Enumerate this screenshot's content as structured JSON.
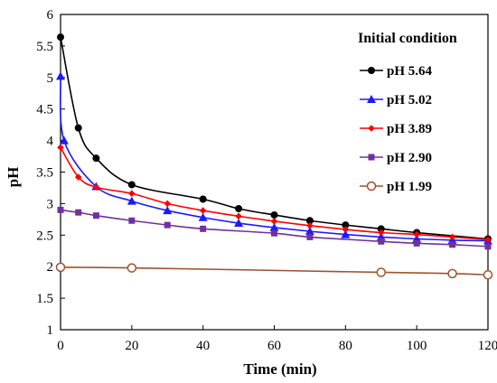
{
  "chart_data": {
    "type": "line",
    "title": "",
    "xlabel": "Time (min)",
    "ylabel": "pH",
    "xlim": [
      0,
      120
    ],
    "ylim": [
      1,
      6
    ],
    "xticks": [
      0,
      20,
      40,
      60,
      80,
      100,
      120
    ],
    "yticks": [
      1,
      1.5,
      2,
      2.5,
      3,
      3.5,
      4,
      4.5,
      5,
      5.5,
      6
    ],
    "x_tick_labels": [
      "0",
      "20",
      "40",
      "60",
      "80",
      "100",
      "120"
    ],
    "y_tick_labels": [
      "1",
      "1.5",
      "2",
      "2.5",
      "3",
      "3.5",
      "4",
      "4.5",
      "5",
      "5.5",
      "6"
    ],
    "grid": false,
    "legend_title": "Initial condition",
    "legend_position": "top-right",
    "series": [
      {
        "name": "pH 5.64",
        "color": "#000000",
        "marker": "circle-filled",
        "x": [
          0,
          5,
          10,
          20,
          40,
          50,
          60,
          70,
          80,
          90,
          100,
          120
        ],
        "y": [
          5.64,
          4.2,
          3.72,
          3.3,
          3.07,
          2.92,
          2.82,
          2.73,
          2.66,
          2.6,
          2.54,
          2.44
        ]
      },
      {
        "name": "pH 5.02",
        "color": "#1a1aff",
        "marker": "triangle",
        "x": [
          0,
          1,
          10,
          20,
          30,
          40,
          50,
          60,
          70,
          80,
          90,
          100,
          110,
          120
        ],
        "y": [
          5.02,
          4.0,
          3.27,
          3.04,
          2.89,
          2.78,
          2.69,
          2.62,
          2.56,
          2.51,
          2.47,
          2.44,
          2.42,
          2.41
        ]
      },
      {
        "name": "pH 3.89",
        "color": "#ff0000",
        "marker": "diamond",
        "x": [
          0,
          5,
          10,
          20,
          30,
          40,
          50,
          60,
          70,
          80,
          90,
          100,
          110,
          120
        ],
        "y": [
          3.89,
          3.42,
          3.26,
          3.16,
          3.0,
          2.89,
          2.8,
          2.72,
          2.65,
          2.59,
          2.54,
          2.51,
          2.47,
          2.43
        ]
      },
      {
        "name": "pH 2.90",
        "color": "#7030a0",
        "marker": "square",
        "x": [
          0,
          5,
          10,
          20,
          30,
          40,
          60,
          70,
          90,
          100,
          110,
          120
        ],
        "y": [
          2.9,
          2.86,
          2.81,
          2.73,
          2.66,
          2.6,
          2.53,
          2.47,
          2.4,
          2.37,
          2.35,
          2.32
        ]
      },
      {
        "name": "pH 1.99",
        "color": "#a0522d",
        "marker": "circle-open",
        "x": [
          0,
          20,
          90,
          110,
          120
        ],
        "y": [
          1.99,
          1.98,
          1.91,
          1.89,
          1.87
        ]
      }
    ]
  }
}
